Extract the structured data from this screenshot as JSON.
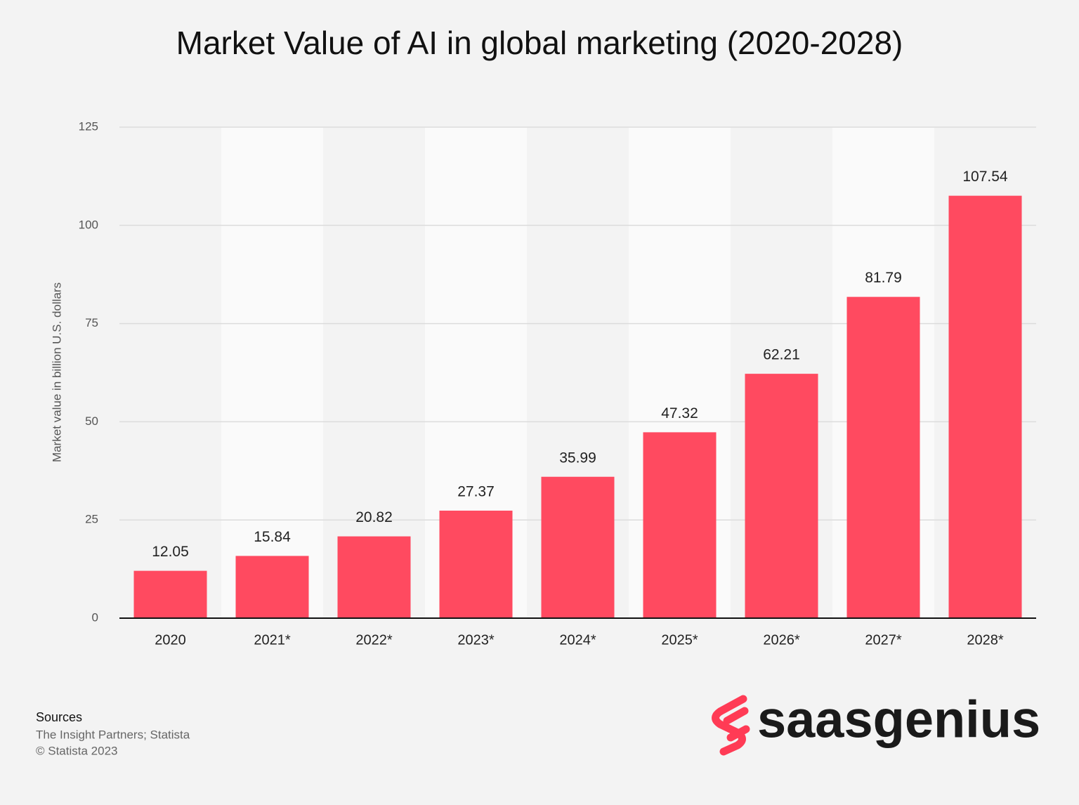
{
  "chart_data": {
    "type": "bar",
    "title": "Market Value of AI in global marketing (2020-2028)",
    "y_label": "Market value in billion U.S. dollars",
    "categories": [
      "2020",
      "2021*",
      "2022*",
      "2023*",
      "2024*",
      "2025*",
      "2026*",
      "2027*",
      "2028*"
    ],
    "values": [
      12.05,
      15.84,
      20.82,
      27.37,
      35.99,
      47.32,
      62.21,
      81.79,
      107.54
    ],
    "color": "#ff4a60",
    "ylim": [
      0,
      125
    ],
    "yticks": [
      0,
      25,
      50,
      75,
      100,
      125
    ],
    "grid": true
  },
  "sources": {
    "heading": "Sources",
    "lines": [
      "The Insight Partners; Statista",
      "© Statista 2023"
    ]
  },
  "logo": "saasgenius"
}
